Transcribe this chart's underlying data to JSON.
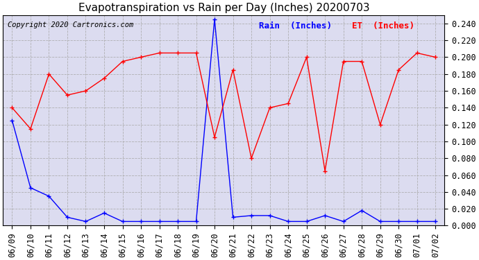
{
  "title": "Evapotranspiration vs Rain per Day (Inches) 20200703",
  "copyright": "Copyright 2020 Cartronics.com",
  "legend_rain": "Rain  (Inches)",
  "legend_et": "ET  (Inches)",
  "dates": [
    "06/09",
    "06/10",
    "06/11",
    "06/12",
    "06/13",
    "06/14",
    "06/15",
    "06/16",
    "06/17",
    "06/18",
    "06/19",
    "06/20",
    "06/21",
    "06/22",
    "06/23",
    "06/24",
    "06/25",
    "06/26",
    "06/27",
    "06/28",
    "06/29",
    "06/30",
    "07/01",
    "07/02"
  ],
  "rain": [
    0.125,
    0.045,
    0.035,
    0.01,
    0.005,
    0.015,
    0.005,
    0.005,
    0.005,
    0.005,
    0.005,
    0.245,
    0.01,
    0.012,
    0.012,
    0.005,
    0.005,
    0.012,
    0.005,
    0.018,
    0.005,
    0.005,
    0.005,
    0.005
  ],
  "et": [
    0.14,
    0.115,
    0.18,
    0.155,
    0.16,
    0.175,
    0.195,
    0.2,
    0.205,
    0.205,
    0.205,
    0.105,
    0.185,
    0.08,
    0.14,
    0.145,
    0.2,
    0.065,
    0.195,
    0.195,
    0.12,
    0.185,
    0.205,
    0.2
  ],
  "ylim": [
    0.0,
    0.25
  ],
  "yticks": [
    0.0,
    0.02,
    0.04,
    0.06,
    0.08,
    0.1,
    0.12,
    0.14,
    0.16,
    0.18,
    0.2,
    0.22,
    0.24
  ],
  "rain_color": "blue",
  "et_color": "red",
  "background_color": "#ffffff",
  "plot_bg_color": "#dcdcf0",
  "grid_color": "#aaaaaa",
  "title_fontsize": 11,
  "copyright_fontsize": 7.5,
  "legend_fontsize": 9,
  "tick_fontsize": 8.5
}
